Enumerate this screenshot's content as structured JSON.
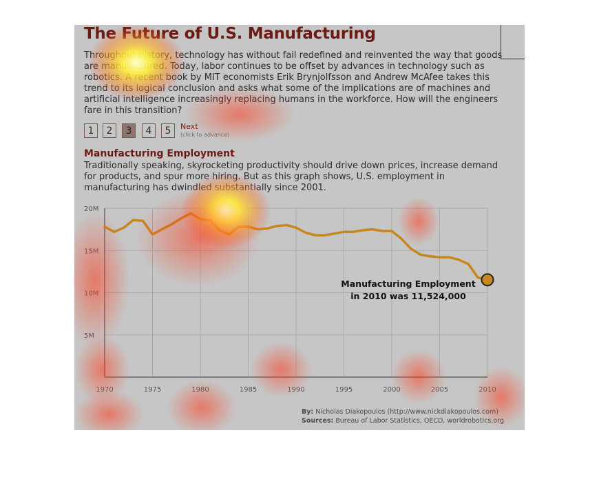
{
  "header": {
    "title": "The Future of U.S. Manufacturing",
    "intro": "Throughout history, technology has without fail redefined and reinvented the way that goods are manufactured. Today, labor continues to be offset by advances in technology such as robotics. A recent book by MIT economists Erik Brynjolfsson and Andrew McAfee takes this trend to its logical conclusion and asks what some of the implications are of machines and artificial intelligence increasingly replacing humans in the workforce. How will the engineers fare in this transition?"
  },
  "pager": {
    "pages": [
      "1",
      "2",
      "3",
      "4",
      "5"
    ],
    "active_index": 2,
    "next_label": "Next",
    "next_hint": "(click to advance)"
  },
  "section": {
    "title": "Manufacturing Employment",
    "description": "Traditionally speaking, skyrocketing productivity should drive down prices, increase demand for products, and spur more hiring. But as this graph shows, U.S. employment in manufacturing has dwindled substantially since 2001."
  },
  "chart_data": {
    "type": "line",
    "title": "Manufacturing Employment",
    "xlabel": "",
    "ylabel": "",
    "xlim": [
      1970,
      2010
    ],
    "ylim": [
      0,
      20000000
    ],
    "x_ticks": [
      "1970",
      "1975",
      "1980",
      "1985",
      "1990",
      "1995",
      "2000",
      "2005",
      "2010"
    ],
    "y_ticks": [
      {
        "value": 20000000,
        "label": "20M"
      },
      {
        "value": 15000000,
        "label": "15M"
      },
      {
        "value": 10000000,
        "label": "10M"
      },
      {
        "value": 5000000,
        "label": "5M"
      }
    ],
    "grid": true,
    "series_color": "#c8861e",
    "series": [
      {
        "x": [
          1970,
          1971,
          1972,
          1973,
          1974,
          1975,
          1976,
          1977,
          1978,
          1979,
          1980,
          1981,
          1982,
          1983,
          1984,
          1985,
          1986,
          1987,
          1988,
          1989,
          1990,
          1991,
          1992,
          1993,
          1994,
          1995,
          1996,
          1997,
          1998,
          1999,
          2000,
          2001,
          2002,
          2003,
          2004,
          2005,
          2006,
          2007,
          2008,
          2009,
          2010
        ],
        "y": [
          17800000,
          17200000,
          17700000,
          18600000,
          18500000,
          16900000,
          17500000,
          18100000,
          18800000,
          19400000,
          18700000,
          18600000,
          17400000,
          16900000,
          17800000,
          17800000,
          17500000,
          17600000,
          17900000,
          18000000,
          17700000,
          17100000,
          16800000,
          16800000,
          17000000,
          17200000,
          17200000,
          17400000,
          17500000,
          17300000,
          17300000,
          16400000,
          15200000,
          14500000,
          14300000,
          14200000,
          14200000,
          13900000,
          13400000,
          11800000,
          11524000
        ]
      }
    ],
    "annotation": {
      "line1": "Manufacturing Employment",
      "line2": "in 2010 was 11,524,000",
      "x": 2010,
      "y": 11524000
    }
  },
  "credits": {
    "by_label": "By:",
    "by_value": "Nicholas Diakopoulos (http://www.nickdiakopoulos.com)",
    "sources_label": "Sources:",
    "sources_value": "Bureau of Labor Statistics, OECD, worldrobotics.org"
  }
}
